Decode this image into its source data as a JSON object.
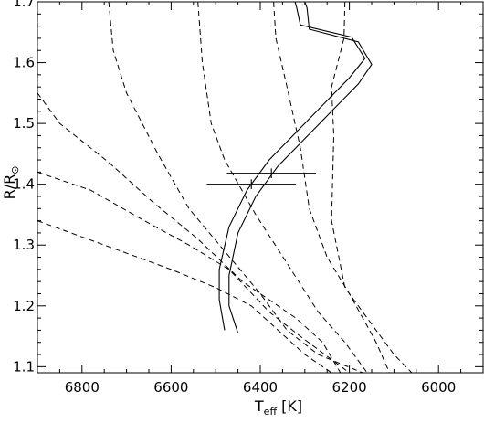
{
  "chart_data": {
    "type": "line",
    "x_axis": {
      "label_main": "T",
      "label_sub": "eff",
      "label_unit": " [K]",
      "range": [
        6900,
        5900
      ],
      "reversed": true,
      "ticks": [
        6800,
        6600,
        6400,
        6200,
        6000
      ],
      "tick_labels": [
        "6800",
        "6600",
        "6400",
        "6200",
        "6000"
      ],
      "minor_step": 50
    },
    "y_axis": {
      "label_main": "R/R",
      "label_symbol": "⊙",
      "range": [
        1.09,
        1.7
      ],
      "ticks": [
        1.1,
        1.2,
        1.3,
        1.4,
        1.5,
        1.6,
        1.7
      ],
      "tick_labels": [
        "1.1",
        "1.2",
        "1.3",
        "1.4",
        "1.5",
        "1.6",
        "1.7"
      ],
      "minor_step": 0.02
    },
    "grid": false,
    "legend": "none",
    "dashed_isochrones": [
      {
        "points": [
          [
            6900,
            1.55
          ],
          [
            6850,
            1.5
          ],
          [
            6740,
            1.436
          ],
          [
            6640,
            1.37
          ],
          [
            6540,
            1.31
          ],
          [
            6440,
            1.24
          ],
          [
            6320,
            1.18
          ],
          [
            6260,
            1.14
          ],
          [
            6220,
            1.09
          ]
        ]
      },
      {
        "points": [
          [
            6900,
            1.42
          ],
          [
            6780,
            1.39
          ],
          [
            6660,
            1.34
          ],
          [
            6560,
            1.3
          ],
          [
            6470,
            1.26
          ],
          [
            6380,
            1.19
          ],
          [
            6310,
            1.15
          ],
          [
            6200,
            1.09
          ]
        ]
      },
      {
        "points": [
          [
            6900,
            1.34
          ],
          [
            6750,
            1.3
          ],
          [
            6600,
            1.26
          ],
          [
            6500,
            1.23
          ],
          [
            6420,
            1.2
          ],
          [
            6360,
            1.16
          ],
          [
            6300,
            1.12
          ],
          [
            6240,
            1.09
          ]
        ]
      },
      {
        "points": [
          [
            6740,
            1.7
          ],
          [
            6730,
            1.62
          ],
          [
            6700,
            1.55
          ],
          [
            6630,
            1.45
          ],
          [
            6560,
            1.36
          ],
          [
            6480,
            1.29
          ],
          [
            6400,
            1.22
          ],
          [
            6340,
            1.16
          ],
          [
            6270,
            1.12
          ],
          [
            6170,
            1.09
          ]
        ]
      },
      {
        "points": [
          [
            6540,
            1.7
          ],
          [
            6530,
            1.6
          ],
          [
            6510,
            1.5
          ],
          [
            6480,
            1.44
          ],
          [
            6410,
            1.35
          ],
          [
            6340,
            1.27
          ],
          [
            6270,
            1.19
          ],
          [
            6210,
            1.14
          ],
          [
            6160,
            1.09
          ]
        ]
      },
      {
        "points": [
          [
            6370,
            1.7
          ],
          [
            6365,
            1.64
          ],
          [
            6340,
            1.56
          ],
          [
            6310,
            1.46
          ],
          [
            6290,
            1.36
          ],
          [
            6250,
            1.28
          ],
          [
            6200,
            1.22
          ],
          [
            6140,
            1.14
          ],
          [
            6110,
            1.09
          ]
        ]
      },
      {
        "points": [
          [
            6210,
            1.7
          ],
          [
            6212,
            1.64
          ],
          [
            6240,
            1.56
          ],
          [
            6235,
            1.48
          ],
          [
            6240,
            1.34
          ],
          [
            6210,
            1.23
          ],
          [
            6150,
            1.17
          ],
          [
            6100,
            1.12
          ],
          [
            6060,
            1.09
          ]
        ]
      }
    ],
    "solid_tracks": [
      {
        "points": [
          [
            6450,
            1.155
          ],
          [
            6470,
            1.2
          ],
          [
            6470,
            1.25
          ],
          [
            6450,
            1.32
          ],
          [
            6410,
            1.38
          ],
          [
            6360,
            1.43
          ],
          [
            6300,
            1.475
          ],
          [
            6240,
            1.52
          ],
          [
            6180,
            1.565
          ],
          [
            6150,
            1.597
          ],
          [
            6180,
            1.634
          ],
          [
            6290,
            1.655
          ],
          [
            6295,
            1.69
          ],
          [
            6300,
            1.7
          ]
        ]
      },
      {
        "points": [
          [
            6480,
            1.16
          ],
          [
            6492,
            1.21
          ],
          [
            6492,
            1.26
          ],
          [
            6470,
            1.33
          ],
          [
            6430,
            1.39
          ],
          [
            6380,
            1.44
          ],
          [
            6320,
            1.485
          ],
          [
            6260,
            1.53
          ],
          [
            6200,
            1.575
          ],
          [
            6165,
            1.607
          ],
          [
            6195,
            1.642
          ],
          [
            6310,
            1.662
          ],
          [
            6318,
            1.69
          ],
          [
            6322,
            1.7
          ]
        ]
      }
    ],
    "error_bars": [
      {
        "x": 6375,
        "y": 1.418,
        "x_err": 100,
        "y_err": 0.008
      },
      {
        "x": 6420,
        "y": 1.4,
        "x_err": 100,
        "y_err": 0.008
      }
    ]
  }
}
